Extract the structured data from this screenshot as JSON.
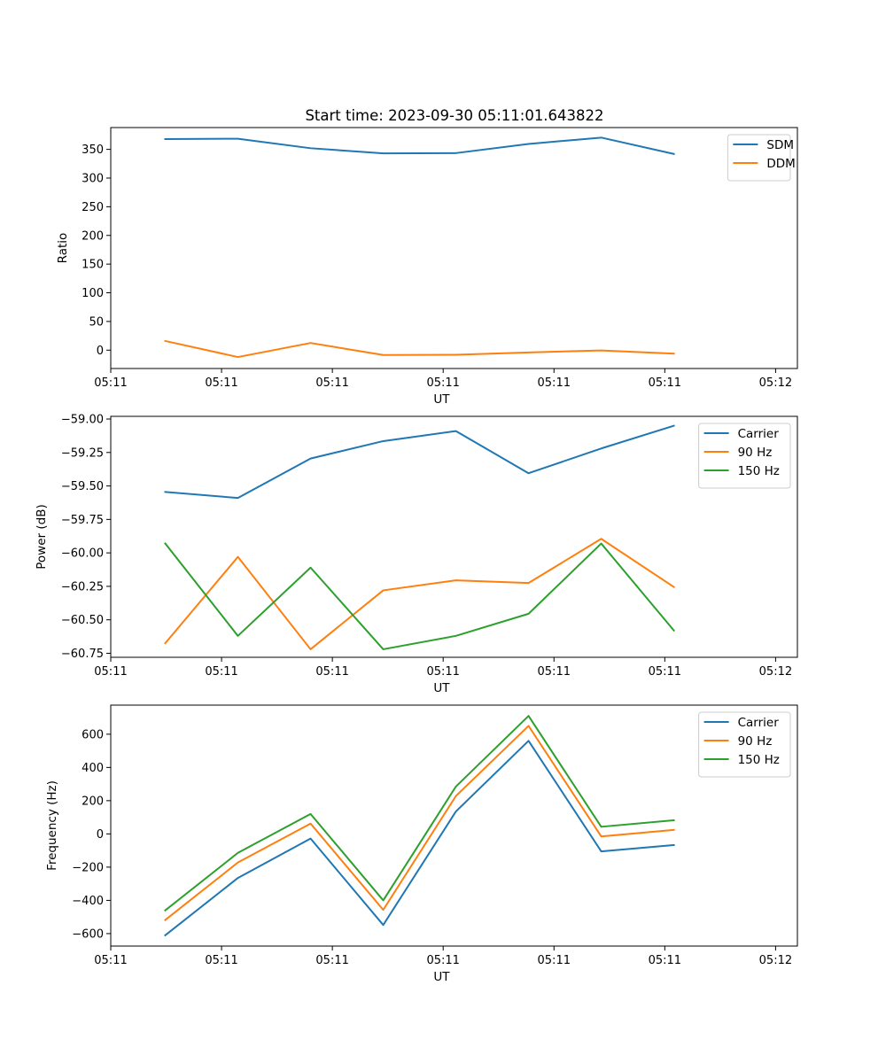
{
  "figure": {
    "title": "Start time: 2023-09-30 05:11:01.643822"
  },
  "colors": {
    "blue": "#1f77b4",
    "orange": "#ff7f0e",
    "green": "#2ca02c"
  },
  "chart_data": [
    {
      "type": "line",
      "title": "Start time: 2023-09-30 05:11:01.643822",
      "xlabel": "UT",
      "ylabel": "Ratio",
      "x_tick_labels": [
        "05:11",
        "05:11",
        "05:11",
        "05:11",
        "05:11",
        "05:11",
        "05:12"
      ],
      "xlim": [
        -0.45,
        8.7
      ],
      "ylim": [
        -32,
        388
      ],
      "yticks": [
        0,
        50,
        100,
        150,
        200,
        250,
        300,
        350
      ],
      "ytick_labels": [
        "0",
        "50",
        "100",
        "150",
        "200",
        "250",
        "300",
        "350"
      ],
      "legend_position": "top-right",
      "x": [
        0,
        1,
        2,
        3,
        4,
        5,
        6,
        7
      ],
      "series": [
        {
          "name": "SDM",
          "color": "#1f77b4",
          "values": [
            368,
            368.5,
            352,
            343,
            343.5,
            359.5,
            370.5,
            342
          ]
        },
        {
          "name": "DDM",
          "color": "#ff7f0e",
          "values": [
            16,
            -12,
            12.5,
            -8.5,
            -8,
            -4,
            -0.5,
            -6
          ]
        }
      ]
    },
    {
      "type": "line",
      "title": "",
      "xlabel": "UT",
      "ylabel": "Power (dB)",
      "x_tick_labels": [
        "05:11",
        "05:11",
        "05:11",
        "05:11",
        "05:11",
        "05:11",
        "05:12"
      ],
      "xlim": [
        -0.45,
        8.7
      ],
      "ylim": [
        -60.78,
        -58.98
      ],
      "yticks": [
        -60.75,
        -60.5,
        -60.25,
        -60.0,
        -59.75,
        -59.5,
        -59.25,
        -59.0
      ],
      "ytick_labels": [
        "−60.75",
        "−60.50",
        "−60.25",
        "−60.00",
        "−59.75",
        "−59.50",
        "−59.25",
        "−59.00"
      ],
      "legend_position": "top-right",
      "x": [
        0,
        1,
        2,
        3,
        4,
        5,
        6,
        7
      ],
      "series": [
        {
          "name": "Carrier",
          "color": "#1f77b4",
          "values": [
            -59.545,
            -59.59,
            -59.295,
            -59.165,
            -59.09,
            -59.405,
            -59.22,
            -59.05
          ]
        },
        {
          "name": "90 Hz",
          "color": "#ff7f0e",
          "values": [
            -60.675,
            -60.03,
            -60.72,
            -60.28,
            -60.205,
            -60.225,
            -59.895,
            -60.255
          ]
        },
        {
          "name": "150 Hz",
          "color": "#2ca02c",
          "values": [
            -59.93,
            -60.62,
            -60.11,
            -60.72,
            -60.62,
            -60.455,
            -59.93,
            -60.58
          ]
        }
      ]
    },
    {
      "type": "line",
      "title": "",
      "xlabel": "UT",
      "ylabel": "Frequency (Hz)",
      "x_tick_labels": [
        "05:11",
        "05:11",
        "05:11",
        "05:11",
        "05:11",
        "05:11",
        "05:12"
      ],
      "xlim": [
        -0.45,
        8.7
      ],
      "ylim": [
        -675,
        775
      ],
      "yticks": [
        -600,
        -400,
        -200,
        0,
        200,
        400,
        600
      ],
      "ytick_labels": [
        "−600",
        "−400",
        "−200",
        "0",
        "200",
        "400",
        "600"
      ],
      "legend_position": "top-right",
      "x": [
        0,
        1,
        2,
        3,
        4,
        5,
        6,
        7
      ],
      "series": [
        {
          "name": "Carrier",
          "color": "#1f77b4",
          "values": [
            -610,
            -265,
            -28,
            -548,
            135,
            560,
            -105,
            -67
          ]
        },
        {
          "name": "90 Hz",
          "color": "#ff7f0e",
          "values": [
            -518,
            -172,
            62,
            -457,
            228,
            650,
            -15,
            24
          ]
        },
        {
          "name": "150 Hz",
          "color": "#2ca02c",
          "values": [
            -460,
            -114,
            120,
            -400,
            285,
            710,
            43,
            82
          ]
        }
      ]
    }
  ]
}
